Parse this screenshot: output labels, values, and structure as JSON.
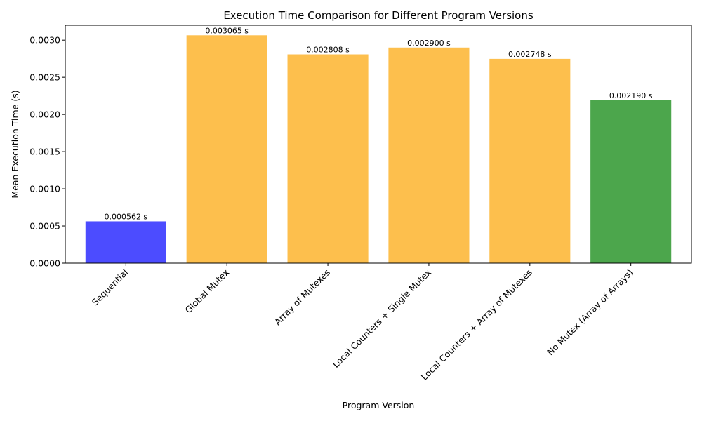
{
  "chart_data": {
    "type": "bar",
    "title": "Execution Time Comparison for Different Program Versions",
    "xlabel": "Program Version",
    "ylabel": "Mean Execution Time (s)",
    "categories": [
      "Sequential",
      "Global Mutex",
      "Array of Mutexes",
      "Local Counters + Single Mutex",
      "Local Counters + Array of Mutexes",
      "No Mutex (Array of Arrays)"
    ],
    "values": [
      0.000562,
      0.003065,
      0.002808,
      0.0029,
      0.002748,
      0.00219
    ],
    "data_labels": [
      "0.000562 s",
      "0.003065 s",
      "0.002808 s",
      "0.002900 s",
      "0.002748 s",
      "0.002190 s"
    ],
    "colors": [
      "#4c4cff",
      "#fdbf4d",
      "#fdbf4d",
      "#fdbf4d",
      "#fdbf4d",
      "#4ca64c"
    ],
    "ylim": [
      0,
      0.0032
    ],
    "yticks": [
      0.0,
      0.0005,
      0.001,
      0.0015,
      0.002,
      0.0025,
      0.003
    ],
    "ytick_labels": [
      "0.0000",
      "0.0005",
      "0.0010",
      "0.0015",
      "0.0020",
      "0.0025",
      "0.0030"
    ],
    "grid": false,
    "legend": "none"
  }
}
